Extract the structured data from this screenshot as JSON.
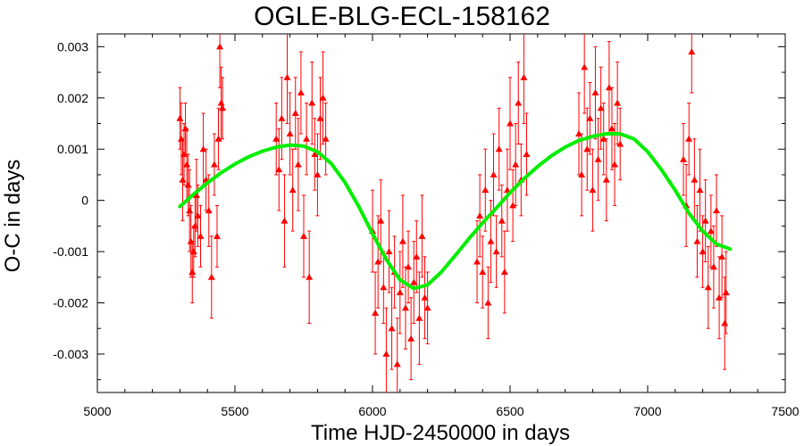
{
  "chart_data": {
    "type": "scatter",
    "title": "OGLE-BLG-ECL-158162",
    "xlabel": "Time HJD-2450000 in days",
    "ylabel": "O-C in days",
    "xlim": [
      5000,
      7500
    ],
    "ylim": [
      -0.00375,
      0.00325
    ],
    "x_ticks": [
      5000,
      5500,
      6000,
      6500,
      7000,
      7500
    ],
    "x_tick_labels": [
      "5000",
      "5500",
      "6000",
      "6500",
      "7000",
      "7500"
    ],
    "y_ticks": [
      0.003,
      0.002,
      0.001,
      0,
      -0.001,
      -0.002,
      -0.003
    ],
    "y_tick_labels": [
      "0.003",
      "0.002",
      "0.001",
      "0",
      "-0.001",
      "-0.002",
      "-0.003"
    ],
    "grid": false,
    "legend": "none",
    "colors": {
      "points": "#ff0000",
      "fit": "#00ee00",
      "frame": "#000000"
    },
    "series": [
      {
        "type": "scatter-errorbar",
        "points": [
          {
            "x": 5300,
            "y": 0.0016,
            "err": 0.0006
          },
          {
            "x": 5305,
            "y": 0.0012,
            "err": 0.0007
          },
          {
            "x": 5310,
            "y": 0.0004,
            "err": 0.0008
          },
          {
            "x": 5315,
            "y": 0.0009,
            "err": 0.0006
          },
          {
            "x": 5320,
            "y": 0.0014,
            "err": 0.0005
          },
          {
            "x": 5325,
            "y": 0.0007,
            "err": 0.0007
          },
          {
            "x": 5330,
            "y": 0.0003,
            "err": 0.0006
          },
          {
            "x": 5335,
            "y": -0.0002,
            "err": 0.0008
          },
          {
            "x": 5340,
            "y": -0.0008,
            "err": 0.0007
          },
          {
            "x": 5345,
            "y": -0.0014,
            "err": 0.0006
          },
          {
            "x": 5350,
            "y": -0.001,
            "err": 0.0005
          },
          {
            "x": 5355,
            "y": -0.0005,
            "err": 0.0006
          },
          {
            "x": 5360,
            "y": 0.0001,
            "err": 0.0007
          },
          {
            "x": 5365,
            "y": -0.0003,
            "err": 0.0006
          },
          {
            "x": 5375,
            "y": -0.0007,
            "err": 0.0006
          },
          {
            "x": 5385,
            "y": 0.001,
            "err": 0.0007
          },
          {
            "x": 5395,
            "y": 0.0004,
            "err": 0.0006
          },
          {
            "x": 5405,
            "y": -0.0002,
            "err": 0.0007
          },
          {
            "x": 5415,
            "y": -0.0015,
            "err": 0.0008
          },
          {
            "x": 5425,
            "y": 0.0007,
            "err": 0.0006
          },
          {
            "x": 5435,
            "y": -0.0007,
            "err": 0.0006
          },
          {
            "x": 5440,
            "y": 0.0012,
            "err": 0.0006
          },
          {
            "x": 5445,
            "y": 0.003,
            "err": 0.0008
          },
          {
            "x": 5450,
            "y": 0.0019,
            "err": 0.0007
          },
          {
            "x": 5455,
            "y": 0.0018,
            "err": 0.0006
          },
          {
            "x": 5650,
            "y": 0.0012,
            "err": 0.0007
          },
          {
            "x": 5660,
            "y": 0.0006,
            "err": 0.0008
          },
          {
            "x": 5670,
            "y": 0.0016,
            "err": 0.0008
          },
          {
            "x": 5680,
            "y": -0.0004,
            "err": 0.0009
          },
          {
            "x": 5690,
            "y": 0.0024,
            "err": 0.0009
          },
          {
            "x": 5700,
            "y": 0.0013,
            "err": 0.0008
          },
          {
            "x": 5710,
            "y": 0.0002,
            "err": 0.0008
          },
          {
            "x": 5720,
            "y": 0.0017,
            "err": 0.0007
          },
          {
            "x": 5730,
            "y": 0.0007,
            "err": 0.0009
          },
          {
            "x": 5740,
            "y": 0.0021,
            "err": 0.0008
          },
          {
            "x": 5750,
            "y": -0.0007,
            "err": 0.0008
          },
          {
            "x": 5760,
            "y": 0.0012,
            "err": 0.0007
          },
          {
            "x": 5770,
            "y": -0.0015,
            "err": 0.0009
          },
          {
            "x": 5780,
            "y": 0.0019,
            "err": 0.0008
          },
          {
            "x": 5790,
            "y": 0.0009,
            "err": 0.0007
          },
          {
            "x": 5800,
            "y": 0.0005,
            "err": 0.0008
          },
          {
            "x": 5810,
            "y": 0.0016,
            "err": 0.0008
          },
          {
            "x": 5820,
            "y": 0.002,
            "err": 0.0009
          },
          {
            "x": 5830,
            "y": 0.0012,
            "err": 0.0007
          },
          {
            "x": 6000,
            "y": -0.0006,
            "err": 0.0008
          },
          {
            "x": 6010,
            "y": -0.0022,
            "err": 0.0008
          },
          {
            "x": 6020,
            "y": -0.0012,
            "err": 0.0009
          },
          {
            "x": 6030,
            "y": -0.0004,
            "err": 0.0008
          },
          {
            "x": 6040,
            "y": -0.0017,
            "err": 0.0007
          },
          {
            "x": 6050,
            "y": -0.003,
            "err": 0.0009
          },
          {
            "x": 6060,
            "y": -0.001,
            "err": 0.0008
          },
          {
            "x": 6070,
            "y": -0.0025,
            "err": 0.0008
          },
          {
            "x": 6080,
            "y": -0.0014,
            "err": 0.0007
          },
          {
            "x": 6090,
            "y": -0.0032,
            "err": 0.0009
          },
          {
            "x": 6100,
            "y": -0.0018,
            "err": 0.0008
          },
          {
            "x": 6110,
            "y": -0.0008,
            "err": 0.0009
          },
          {
            "x": 6120,
            "y": -0.0021,
            "err": 0.0008
          },
          {
            "x": 6130,
            "y": -0.0013,
            "err": 0.0007
          },
          {
            "x": 6140,
            "y": -0.0027,
            "err": 0.0008
          },
          {
            "x": 6150,
            "y": -0.0016,
            "err": 0.0008
          },
          {
            "x": 6160,
            "y": -0.0011,
            "err": 0.0007
          },
          {
            "x": 6170,
            "y": -0.0023,
            "err": 0.0009
          },
          {
            "x": 6180,
            "y": -0.0007,
            "err": 0.0008
          },
          {
            "x": 6190,
            "y": -0.0019,
            "err": 0.0008
          },
          {
            "x": 6200,
            "y": -0.0021,
            "err": 0.0007
          },
          {
            "x": 6380,
            "y": -0.0012,
            "err": 0.0008
          },
          {
            "x": 6390,
            "y": -0.0003,
            "err": 0.0008
          },
          {
            "x": 6400,
            "y": -0.0014,
            "err": 0.0007
          },
          {
            "x": 6410,
            "y": 0.0002,
            "err": 0.0008
          },
          {
            "x": 6420,
            "y": -0.002,
            "err": 0.0007
          },
          {
            "x": 6430,
            "y": -0.0008,
            "err": 0.0008
          },
          {
            "x": 6440,
            "y": 0.0005,
            "err": 0.0008
          },
          {
            "x": 6450,
            "y": -0.001,
            "err": 0.0007
          },
          {
            "x": 6460,
            "y": 0.001,
            "err": 0.0008
          },
          {
            "x": 6470,
            "y": -0.0004,
            "err": 0.0007
          },
          {
            "x": 6480,
            "y": -0.0014,
            "err": 0.0008
          },
          {
            "x": 6490,
            "y": 0.0002,
            "err": 0.0008
          },
          {
            "x": 6500,
            "y": 0.0015,
            "err": 0.0009
          },
          {
            "x": 6510,
            "y": -0.0001,
            "err": 0.0007
          },
          {
            "x": 6520,
            "y": 0.0007,
            "err": 0.0008
          },
          {
            "x": 6530,
            "y": 0.0019,
            "err": 0.0008
          },
          {
            "x": 6540,
            "y": 0.0004,
            "err": 0.0007
          },
          {
            "x": 6550,
            "y": 0.0024,
            "err": 0.0009
          },
          {
            "x": 6560,
            "y": 0.0009,
            "err": 0.0008
          },
          {
            "x": 6750,
            "y": 0.0013,
            "err": 0.0008
          },
          {
            "x": 6760,
            "y": 0.0005,
            "err": 0.0008
          },
          {
            "x": 6770,
            "y": 0.0026,
            "err": 0.0009
          },
          {
            "x": 6780,
            "y": 0.001,
            "err": 0.0008
          },
          {
            "x": 6790,
            "y": 0.0016,
            "err": 0.0007
          },
          {
            "x": 6800,
            "y": 0.0002,
            "err": 0.0008
          },
          {
            "x": 6810,
            "y": 0.0021,
            "err": 0.0009
          },
          {
            "x": 6820,
            "y": 0.0008,
            "err": 0.0008
          },
          {
            "x": 6830,
            "y": 0.0018,
            "err": 0.0008
          },
          {
            "x": 6840,
            "y": 0.0012,
            "err": 0.0007
          },
          {
            "x": 6850,
            "y": 0.0004,
            "err": 0.0008
          },
          {
            "x": 6860,
            "y": 0.0022,
            "err": 0.0009
          },
          {
            "x": 6870,
            "y": 0.0014,
            "err": 0.0008
          },
          {
            "x": 6880,
            "y": 0.0007,
            "err": 0.0008
          },
          {
            "x": 6890,
            "y": 0.0019,
            "err": 0.0008
          },
          {
            "x": 6900,
            "y": 0.0011,
            "err": 0.0007
          },
          {
            "x": 7130,
            "y": 0.0008,
            "err": 0.0007
          },
          {
            "x": 7140,
            "y": -0.0001,
            "err": 0.0008
          },
          {
            "x": 7150,
            "y": 0.0012,
            "err": 0.0007
          },
          {
            "x": 7160,
            "y": 0.0029,
            "err": 0.0008
          },
          {
            "x": 7170,
            "y": 0.0004,
            "err": 0.0008
          },
          {
            "x": 7180,
            "y": -0.0008,
            "err": 0.0007
          },
          {
            "x": 7190,
            "y": 0.0002,
            "err": 0.0008
          },
          {
            "x": 7200,
            "y": -0.001,
            "err": 0.0007
          },
          {
            "x": 7210,
            "y": -0.0004,
            "err": 0.0008
          },
          {
            "x": 7220,
            "y": -0.0017,
            "err": 0.0008
          },
          {
            "x": 7230,
            "y": -0.0006,
            "err": 0.0007
          },
          {
            "x": 7240,
            "y": -0.0013,
            "err": 0.0008
          },
          {
            "x": 7250,
            "y": -0.0002,
            "err": 0.0007
          },
          {
            "x": 7260,
            "y": -0.0019,
            "err": 0.0008
          },
          {
            "x": 7270,
            "y": -0.0011,
            "err": 0.0008
          },
          {
            "x": 7280,
            "y": -0.0024,
            "err": 0.0009
          },
          {
            "x": 7285,
            "y": -0.0018,
            "err": 0.0008
          }
        ]
      },
      {
        "type": "fit-curve",
        "x": [
          5300,
          5350,
          5400,
          5450,
          5500,
          5550,
          5600,
          5650,
          5700,
          5750,
          5800,
          5850,
          5900,
          5950,
          6000,
          6050,
          6100,
          6150,
          6200,
          6250,
          6300,
          6350,
          6400,
          6450,
          6500,
          6550,
          6600,
          6650,
          6700,
          6750,
          6800,
          6850,
          6900,
          6950,
          7000,
          7050,
          7100,
          7150,
          7200,
          7250,
          7300
        ],
        "y": [
          -0.00012,
          0.00012,
          0.00034,
          0.00054,
          0.00071,
          0.00085,
          0.00096,
          0.00104,
          0.00108,
          0.00106,
          0.00095,
          0.00072,
          0.00035,
          -0.00012,
          -0.00065,
          -0.00115,
          -0.00155,
          -0.00172,
          -0.00165,
          -0.0014,
          -0.00108,
          -0.00075,
          -0.00044,
          -0.00015,
          0.00015,
          0.00042,
          0.00066,
          0.00087,
          0.00104,
          0.00117,
          0.00125,
          0.0013,
          0.0013,
          0.0012,
          0.00095,
          0.0006,
          0.0002,
          -0.00025,
          -0.0006,
          -0.00085,
          -0.00095
        ]
      }
    ]
  }
}
